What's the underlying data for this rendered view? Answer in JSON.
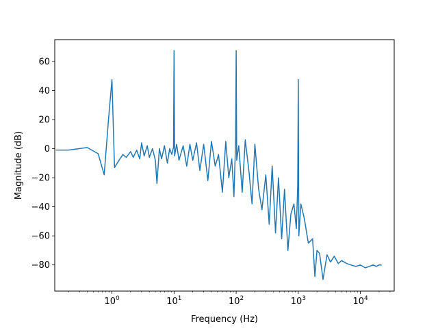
{
  "chart_data": {
    "type": "line",
    "title": "",
    "xlabel": "Frequency (Hz)",
    "ylabel": "Magnitude (dB)",
    "xscale": "log",
    "xlim": [
      0.12,
      35000
    ],
    "ylim": [
      -98,
      75
    ],
    "grid": false,
    "line_color": "#1f77b4",
    "x_ticks": [
      {
        "base": "10",
        "exp": "0",
        "value": 1
      },
      {
        "base": "10",
        "exp": "1",
        "value": 10
      },
      {
        "base": "10",
        "exp": "2",
        "value": 100
      },
      {
        "base": "10",
        "exp": "3",
        "value": 1000
      },
      {
        "base": "10",
        "exp": "4",
        "value": 10000
      }
    ],
    "y_ticks": [
      {
        "label": "60",
        "value": 60
      },
      {
        "label": "40",
        "value": 40
      },
      {
        "label": "20",
        "value": 20
      },
      {
        "label": "0",
        "value": 0
      },
      {
        "label": "−20",
        "value": -20
      },
      {
        "label": "−40",
        "value": -40
      },
      {
        "label": "−60",
        "value": -60
      },
      {
        "label": "−80",
        "value": -80
      }
    ],
    "series": [
      {
        "x": [
          0.125,
          0.2,
          0.4,
          0.6,
          0.75,
          0.88,
          1.0,
          1.1,
          1.3,
          1.5,
          1.7,
          2.0,
          2.2,
          2.5,
          2.8,
          3.0,
          3.3,
          3.7,
          4.0,
          4.5,
          5.0,
          5.3,
          5.8,
          6.3,
          7.0,
          7.8,
          8.5,
          9.2,
          9.8,
          10.0,
          10.2,
          11,
          12,
          14,
          16,
          18,
          20,
          23,
          26,
          30,
          35,
          40,
          46,
          52,
          60,
          68,
          76,
          85,
          92,
          98,
          100,
          102,
          110,
          125,
          140,
          160,
          180,
          200,
          230,
          260,
          300,
          340,
          380,
          430,
          480,
          540,
          600,
          680,
          760,
          850,
          930,
          980,
          1000,
          1020,
          1100,
          1250,
          1450,
          1700,
          1850,
          2000,
          2200,
          2500,
          2900,
          3300,
          3800,
          4400,
          5000,
          6000,
          7000,
          8500,
          10000,
          12000,
          14000,
          16000,
          18000,
          20000,
          22000
        ],
        "y": [
          -1,
          -1,
          0.8,
          -3.5,
          -18,
          20,
          47.5,
          -13,
          -8,
          -4,
          -6,
          -2,
          -6,
          -1,
          -7,
          4,
          -5,
          2,
          -6,
          0,
          -8,
          -24,
          0,
          -7,
          2,
          -10,
          0,
          -4,
          1,
          67.5,
          -5,
          3,
          -8,
          2,
          -12,
          3,
          -8,
          4,
          -15,
          3,
          -22,
          5,
          -12,
          -4,
          -30,
          5,
          -20,
          -7,
          -33,
          5,
          67.5,
          -8,
          2,
          -30,
          6,
          -15,
          -38,
          3,
          -28,
          -42,
          -18,
          -52,
          -12,
          -58,
          -20,
          -62,
          -28,
          -70,
          -45,
          -38,
          -55,
          -25,
          47.5,
          -60,
          -38,
          -48,
          -65,
          -62,
          -88,
          -70,
          -72,
          -90,
          -73,
          -78,
          -74,
          -79,
          -77,
          -79,
          -80,
          -81,
          -80,
          -82,
          -81,
          -80,
          -81,
          -80,
          -80
        ]
      }
    ]
  }
}
